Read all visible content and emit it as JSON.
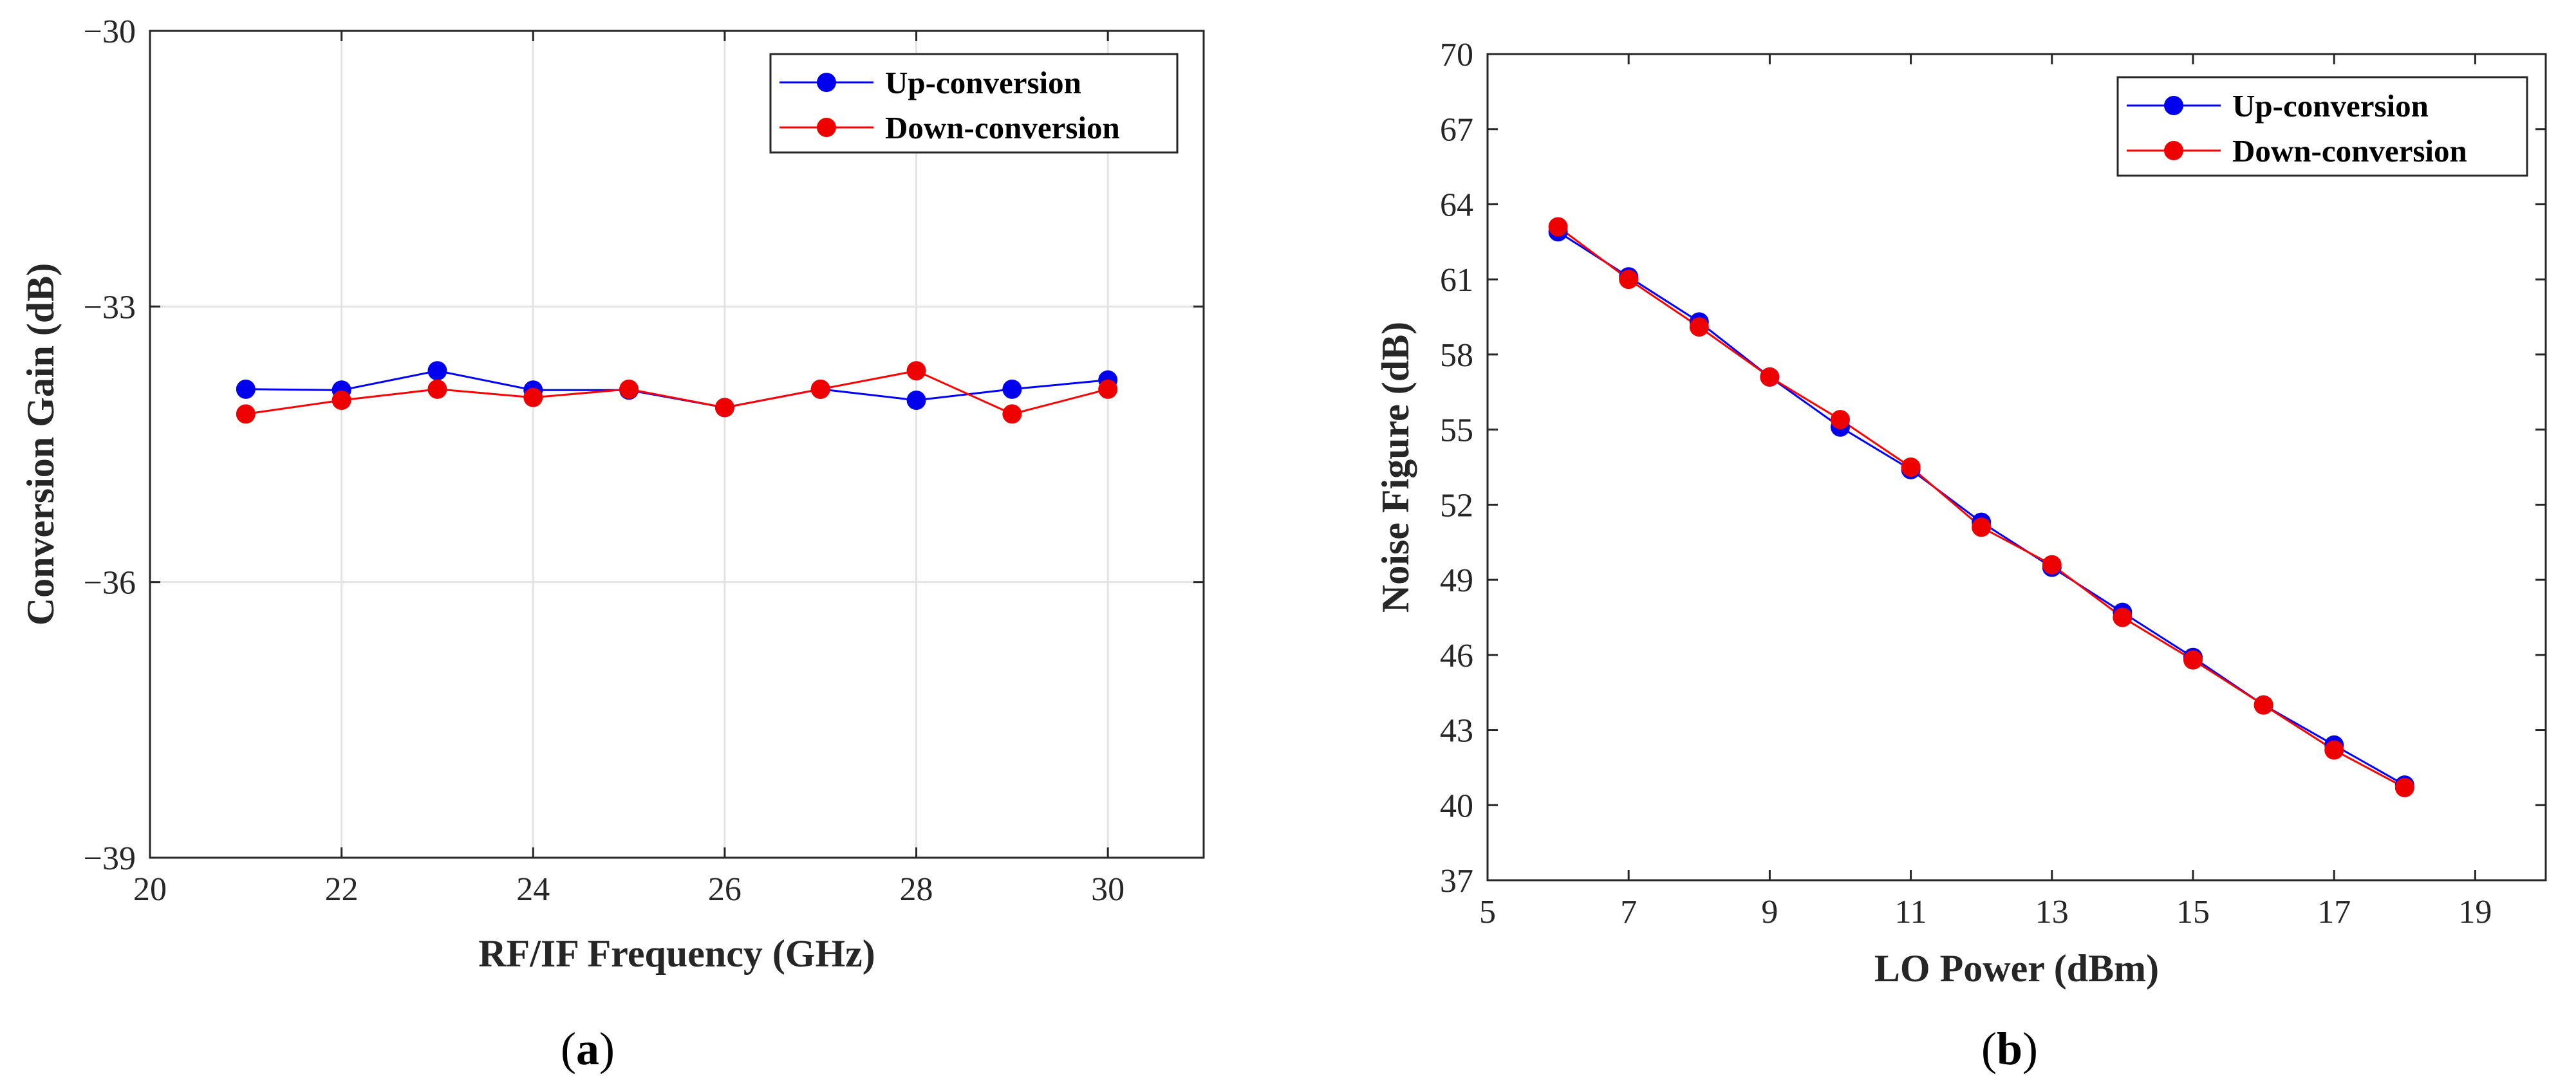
{
  "chart_data": [
    {
      "type": "line",
      "id": "a",
      "caption": {
        "open": "(",
        "letter": "a",
        "close": ")"
      },
      "xlabel": "RF/IF Frequency (GHz)",
      "ylabel": "Conversion Gain (dB)",
      "xlim": [
        20,
        31
      ],
      "ylim": [
        -39,
        -30
      ],
      "xticks": [
        20,
        22,
        24,
        26,
        28,
        30
      ],
      "yticks": [
        -39,
        -36,
        -33,
        -30
      ],
      "xtick_labels": [
        "20",
        "22",
        "24",
        "26",
        "28",
        "30"
      ],
      "ytick_labels": [
        "−39",
        "−36",
        "−33",
        "−30"
      ],
      "grid": true,
      "legend_position": "top-right",
      "x": [
        21,
        22,
        23,
        24,
        25,
        26,
        27,
        28,
        29,
        30
      ],
      "series": [
        {
          "name": "Up-conversion",
          "color": "#0000ff",
          "marker_color": "#0000ee",
          "values": [
            -33.9,
            -33.91,
            -33.7,
            -33.91,
            -33.91,
            -34.1,
            -33.9,
            -34.02,
            -33.9,
            -33.8
          ]
        },
        {
          "name": "Down-conversion",
          "color": "#ff0000",
          "marker_color": "#ee0000",
          "values": [
            -34.17,
            -34.02,
            -33.9,
            -33.99,
            -33.9,
            -34.1,
            -33.9,
            -33.7,
            -34.17,
            -33.9
          ]
        }
      ]
    },
    {
      "type": "line",
      "id": "b",
      "caption": {
        "open": "(",
        "letter": "b",
        "close": ")"
      },
      "xlabel": "LO Power (dBm)",
      "ylabel": "Noise Figure (dB)",
      "xlim": [
        5,
        20
      ],
      "ylim": [
        37,
        70
      ],
      "xticks": [
        5,
        7,
        9,
        11,
        13,
        15,
        17,
        19
      ],
      "yticks": [
        37,
        40,
        43,
        46,
        49,
        52,
        55,
        58,
        61,
        64,
        67,
        70
      ],
      "xtick_labels": [
        "5",
        "7",
        "9",
        "11",
        "13",
        "15",
        "17",
        "19"
      ],
      "ytick_labels": [
        "37",
        "40",
        "43",
        "46",
        "49",
        "52",
        "55",
        "58",
        "61",
        "64",
        "67",
        "70"
      ],
      "grid": false,
      "legend_position": "top-right",
      "x": [
        6,
        7,
        8,
        9,
        10,
        11,
        12,
        13,
        14,
        15,
        16,
        17,
        18
      ],
      "series": [
        {
          "name": "Up-conversion",
          "color": "#0000ff",
          "marker_color": "#0000ee",
          "values": [
            62.9,
            61.1,
            59.3,
            57.1,
            55.1,
            53.4,
            51.3,
            49.5,
            47.7,
            45.9,
            44.0,
            42.4,
            40.8
          ]
        },
        {
          "name": "Down-conversion",
          "color": "#ff0000",
          "marker_color": "#ee0000",
          "values": [
            63.1,
            61.0,
            59.1,
            57.1,
            55.4,
            53.5,
            51.1,
            49.6,
            47.5,
            45.8,
            44.0,
            42.2,
            40.7
          ]
        }
      ]
    }
  ]
}
